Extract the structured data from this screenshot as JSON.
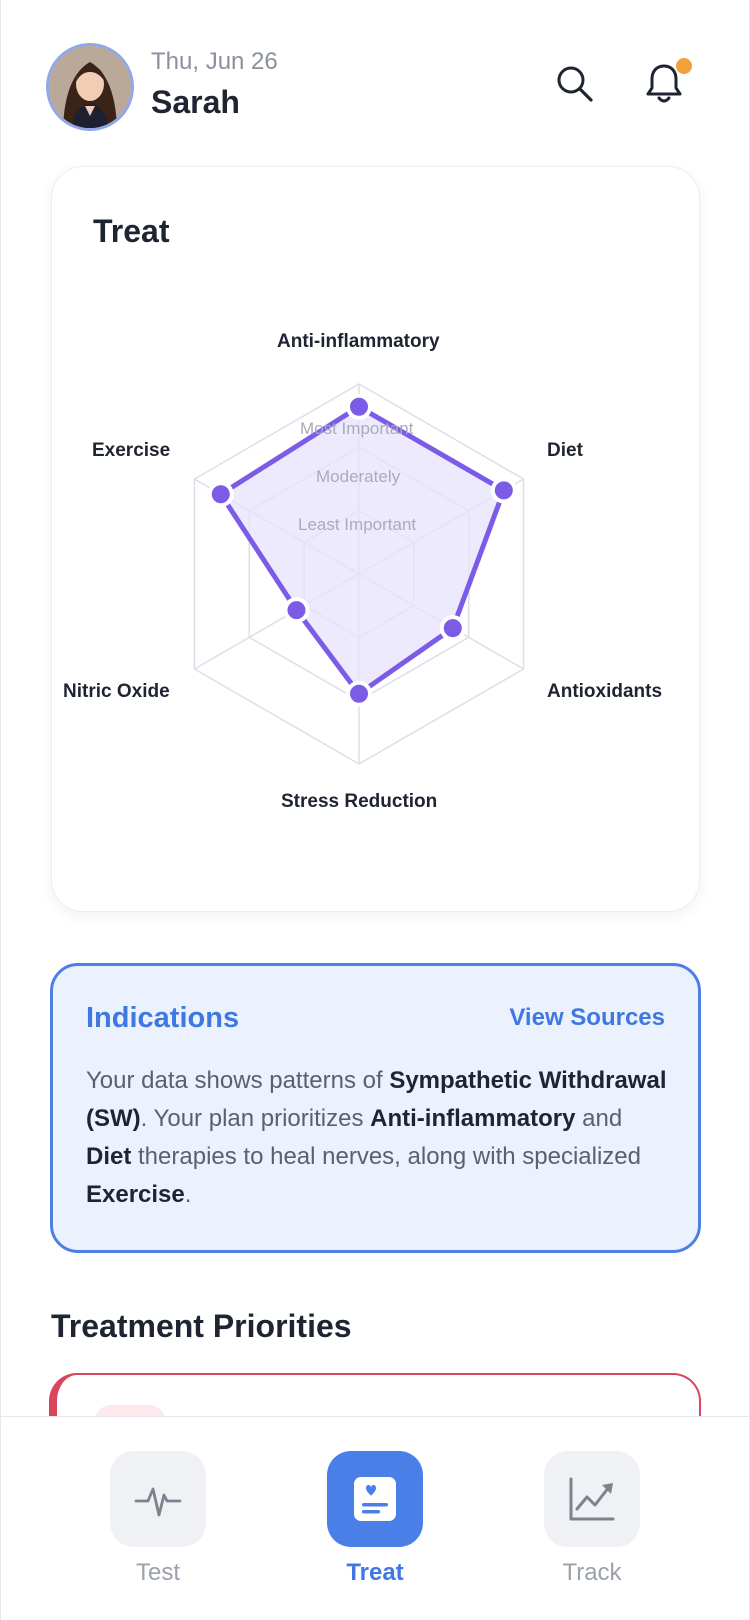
{
  "header": {
    "date": "Thu, Jun 26",
    "user_name": "Sarah"
  },
  "treat_card": {
    "title": "Treat",
    "ring_labels": [
      "Most Important",
      "Moderately",
      "Least Important"
    ],
    "axis_labels": {
      "anti_inflammatory": "Anti-inflammatory",
      "diet": "Diet",
      "antioxidants": "Antioxidants",
      "stress_reduction": "Stress Reduction",
      "nitric_oxide": "Nitric Oxide",
      "exercise": "Exercise"
    }
  },
  "chart_data": {
    "type": "radar",
    "categories": [
      "Anti-inflammatory",
      "Diet",
      "Antioxidants",
      "Stress Reduction",
      "Nitric Oxide",
      "Exercise"
    ],
    "levels": [
      "Least Important",
      "Moderately",
      "Most Important"
    ],
    "values": [
      0.88,
      0.88,
      0.57,
      0.63,
      0.38,
      0.84
    ],
    "rlim": [
      0,
      1
    ],
    "grid": true,
    "colors": {
      "fill": "#e8e3fc",
      "line": "#7c5ce6",
      "point": "#7c5ce6",
      "grid": "#dcdfe8"
    }
  },
  "indications": {
    "title": "Indications",
    "link": "View Sources",
    "text": {
      "p1": "Your data shows patterns of ",
      "b1": "Sympathetic Withdrawal (SW)",
      "p2": ". Your plan prioritizes ",
      "b2": "Anti-inflammatory",
      "p3": " and ",
      "b3": "Diet",
      "p4": " therapies to heal nerves, along with specialized ",
      "b4": "Exercise",
      "p5": "."
    }
  },
  "priorities": {
    "title": "Treatment Priorities"
  },
  "nav": {
    "items": [
      {
        "label": "Test",
        "icon": "pulse-icon"
      },
      {
        "label": "Treat",
        "icon": "heart-clipboard-icon",
        "active": true
      },
      {
        "label": "Track",
        "icon": "trend-chart-icon"
      }
    ]
  },
  "colors": {
    "accent": "#4a7fe8",
    "notification_dot": "#f0a13a",
    "priority_border": "#d8455d"
  }
}
